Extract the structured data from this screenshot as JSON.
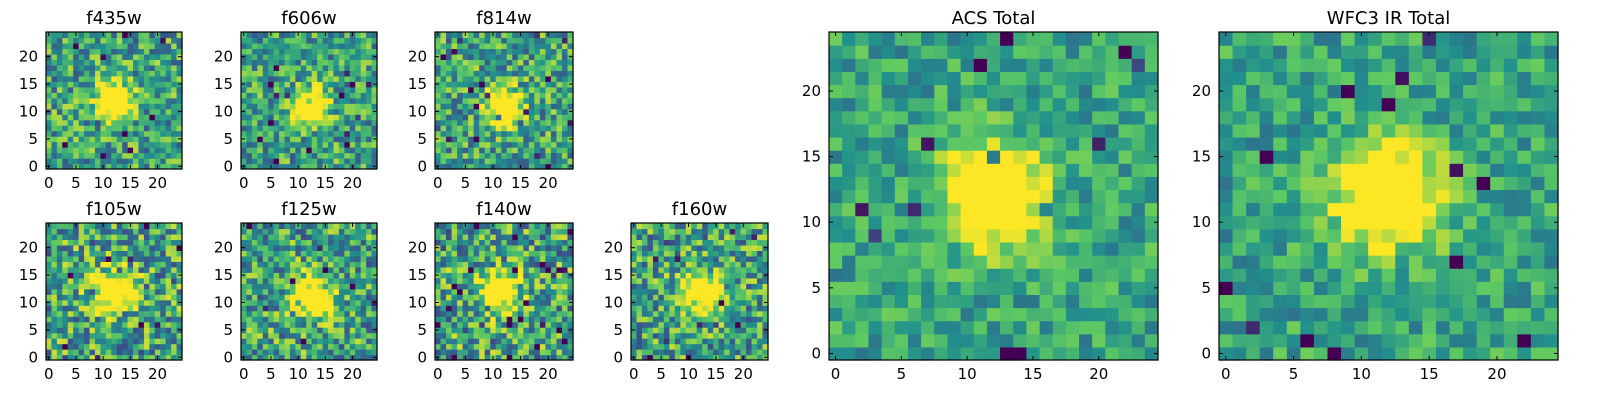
{
  "figure": {
    "description_free": true
  },
  "chart_data": [
    {
      "type": "heatmap",
      "title": "f435w",
      "xticks": [
        0,
        5,
        10,
        15,
        20
      ],
      "yticks": [
        0,
        5,
        10,
        15,
        20
      ],
      "xlim": [
        0,
        24
      ],
      "ylim": [
        0,
        24
      ],
      "grid_size": 25,
      "source_center": [
        12,
        12
      ],
      "source_radius": 2.3,
      "noise_level": 0.35,
      "seed": 11
    },
    {
      "type": "heatmap",
      "title": "f606w",
      "xticks": [
        0,
        5,
        10,
        15,
        20
      ],
      "yticks": [
        0,
        5,
        10,
        15,
        20
      ],
      "xlim": [
        0,
        24
      ],
      "ylim": [
        0,
        24
      ],
      "grid_size": 25,
      "source_center": [
        12,
        11
      ],
      "source_radius": 2.3,
      "noise_level": 0.33,
      "seed": 23
    },
    {
      "type": "heatmap",
      "title": "f814w",
      "xticks": [
        0,
        5,
        10,
        15,
        20
      ],
      "yticks": [
        0,
        5,
        10,
        15,
        20
      ],
      "xlim": [
        0,
        24
      ],
      "ylim": [
        0,
        24
      ],
      "grid_size": 25,
      "source_center": [
        12,
        11
      ],
      "source_radius": 2.3,
      "noise_level": 0.35,
      "seed": 37
    },
    {
      "type": "heatmap",
      "title": "f105w",
      "xticks": [
        0,
        5,
        10,
        15,
        20
      ],
      "yticks": [
        0,
        5,
        10,
        15,
        20
      ],
      "xlim": [
        0,
        24
      ],
      "ylim": [
        0,
        24
      ],
      "grid_size": 25,
      "source_center": [
        12,
        12
      ],
      "source_radius": 2.6,
      "noise_level": 0.4,
      "seed": 41
    },
    {
      "type": "heatmap",
      "title": "f125w",
      "xticks": [
        0,
        5,
        10,
        15,
        20
      ],
      "yticks": [
        0,
        5,
        10,
        15,
        20
      ],
      "xlim": [
        0,
        24
      ],
      "ylim": [
        0,
        24
      ],
      "grid_size": 25,
      "source_center": [
        13,
        11
      ],
      "source_radius": 2.5,
      "noise_level": 0.38,
      "seed": 53
    },
    {
      "type": "heatmap",
      "title": "f140w",
      "xticks": [
        0,
        5,
        10,
        15,
        20
      ],
      "yticks": [
        0,
        5,
        10,
        15,
        20
      ],
      "xlim": [
        0,
        24
      ],
      "ylim": [
        0,
        24
      ],
      "grid_size": 25,
      "source_center": [
        11,
        12
      ],
      "source_radius": 2.4,
      "noise_level": 0.4,
      "seed": 67
    },
    {
      "type": "heatmap",
      "title": "f160w",
      "xticks": [
        0,
        5,
        10,
        15,
        20
      ],
      "yticks": [
        0,
        5,
        10,
        15,
        20
      ],
      "xlim": [
        0,
        24
      ],
      "ylim": [
        0,
        24
      ],
      "grid_size": 25,
      "source_center": [
        12,
        12
      ],
      "source_radius": 2.4,
      "noise_level": 0.38,
      "seed": 79
    },
    {
      "type": "heatmap",
      "title": "ACS Total",
      "xticks": [
        0,
        5,
        10,
        15,
        20
      ],
      "yticks": [
        0,
        5,
        10,
        15,
        20
      ],
      "xlim": [
        0,
        24
      ],
      "ylim": [
        0,
        24
      ],
      "grid_size": 25,
      "source_center": [
        12,
        12
      ],
      "source_radius": 2.6,
      "noise_level": 0.22,
      "seed": 97
    },
    {
      "type": "heatmap",
      "title": "WFC3 IR Total",
      "xticks": [
        0,
        5,
        10,
        15,
        20
      ],
      "yticks": [
        0,
        5,
        10,
        15,
        20
      ],
      "xlim": [
        0,
        24
      ],
      "ylim": [
        0,
        24
      ],
      "grid_size": 25,
      "source_center": [
        12,
        12
      ],
      "source_radius": 2.6,
      "noise_level": 0.22,
      "seed": 113
    }
  ],
  "colormap": [
    "#440154",
    "#3b528b",
    "#21918c",
    "#5ec962",
    "#fde725"
  ]
}
